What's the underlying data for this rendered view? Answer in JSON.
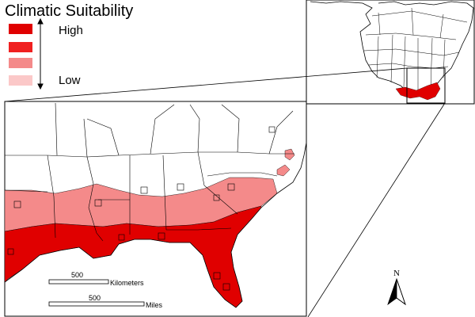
{
  "legend": {
    "title": "Climatic Suitability",
    "high_label": "High",
    "low_label": "Low",
    "classes": [
      {
        "rank": 1,
        "color": "#e00000"
      },
      {
        "rank": 2,
        "color": "#f02020"
      },
      {
        "rank": 3,
        "color": "#f48a8a"
      },
      {
        "rank": 4,
        "color": "#fbc8c8"
      }
    ]
  },
  "scalebar": {
    "km_value": "500",
    "km_unit": "Kilometers",
    "mi_value": "500",
    "mi_unit": "Miles"
  },
  "north_arrow": {
    "label": "N"
  },
  "colors": {
    "highest": "#e00000",
    "low": "#f48a8a",
    "background_land": "#ffffff",
    "outline": "#000000"
  }
}
